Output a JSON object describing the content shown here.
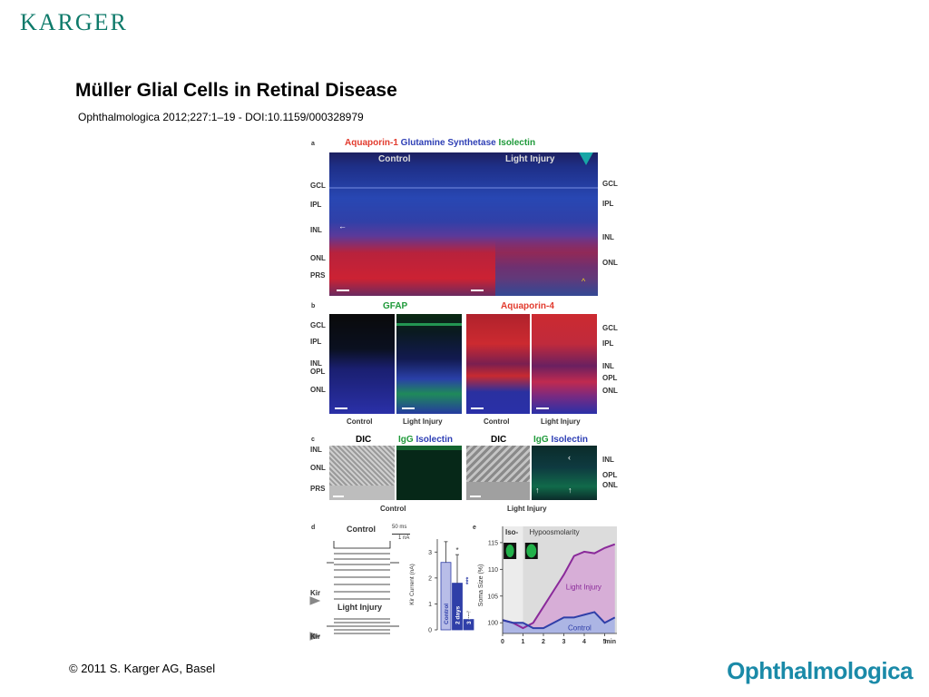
{
  "header": {
    "logo": "KARGER"
  },
  "slide": {
    "title": "Müller Glial Cells in Retinal Disease",
    "citation": "Ophthalmologica 2012;227:1–19 - DOI:10.1159/000328979"
  },
  "footer": {
    "copyright": "© 2011 S. Karger AG, Basel",
    "journal": "Ophthalmologica"
  },
  "figure": {
    "panel_a": {
      "letter": "a",
      "stain_1": "Aquaporin-1",
      "stain_2": "Glutamine Synthetase",
      "stain_3": "Isolectin",
      "label_control": "Control",
      "label_injury": "Light Injury",
      "layers_left": [
        "GCL",
        "IPL",
        "INL",
        "ONL",
        "PRS"
      ],
      "layers_right": [
        "GCL",
        "IPL",
        "INL",
        "ONL"
      ]
    },
    "panel_b": {
      "letter": "b",
      "stain_left": "GFAP",
      "stain_right": "Aquaporin-4",
      "layers_left": [
        "GCL",
        "IPL",
        "INL",
        "OPL",
        "ONL"
      ],
      "layers_right": [
        "GCL",
        "IPL",
        "INL",
        "OPL",
        "ONL"
      ],
      "captions": [
        "Control",
        "Light Injury",
        "Control",
        "Light Injury"
      ]
    },
    "panel_c": {
      "letter": "c",
      "head_dic": "DIC",
      "head_igg": "IgG",
      "head_isolectin": "Isolectin",
      "layers_left": [
        "INL",
        "ONL",
        "PRS"
      ],
      "layers_right": [
        "INL",
        "OPL",
        "ONL"
      ],
      "caption_left": "Control",
      "caption_right": "Light Injury"
    },
    "panel_d": {
      "letter": "d",
      "trace_control": "Control",
      "trace_injury": "Light Injury",
      "kir": "Kir",
      "scale_ms": "50 ms",
      "scale_na": "1 nA",
      "bar_ylabel": "Kir Current (nA)",
      "bar_yticks": [
        "0",
        "1",
        "2",
        "3"
      ],
      "bar_labels": [
        "Control",
        "2 days",
        "3 days"
      ],
      "sig_star": "*",
      "sig_stars": "***"
    },
    "panel_e": {
      "letter": "e",
      "iso_label": "Iso-",
      "hypo_label": "Hypoosmolarity",
      "ylabel": "Soma Size (%)",
      "yticks": [
        "100",
        "105",
        "110",
        "115"
      ],
      "xticks": [
        "0",
        "1",
        "2",
        "3",
        "4",
        "5"
      ],
      "xunit": "min",
      "series_injury": "Light Injury",
      "series_control": "Control"
    }
  },
  "chart_data": [
    {
      "type": "bar",
      "categories": [
        "Control",
        "2 days",
        "3 days"
      ],
      "values": [
        2.6,
        1.8,
        0.4
      ],
      "errors": [
        0.8,
        1.1,
        0.3
      ],
      "ylabel": "Kir Current (nA)",
      "ylim": [
        0,
        3.5
      ]
    },
    {
      "type": "area",
      "x": [
        0,
        0.5,
        1,
        1.5,
        2,
        2.5,
        3,
        3.5,
        4,
        4.5,
        5,
        5.5
      ],
      "series": [
        {
          "name": "Light Injury",
          "values": [
            100.5,
            100,
            99,
            100,
            103,
            106,
            109,
            112.5,
            113.3,
            113,
            114,
            114.7
          ]
        },
        {
          "name": "Control",
          "values": [
            100.5,
            100,
            100,
            99,
            99,
            100,
            101,
            101,
            101.5,
            102,
            100,
            101
          ]
        }
      ],
      "ylabel": "Soma Size (%)",
      "ylim": [
        98,
        116
      ],
      "xlim": [
        0,
        5.6
      ]
    }
  ]
}
